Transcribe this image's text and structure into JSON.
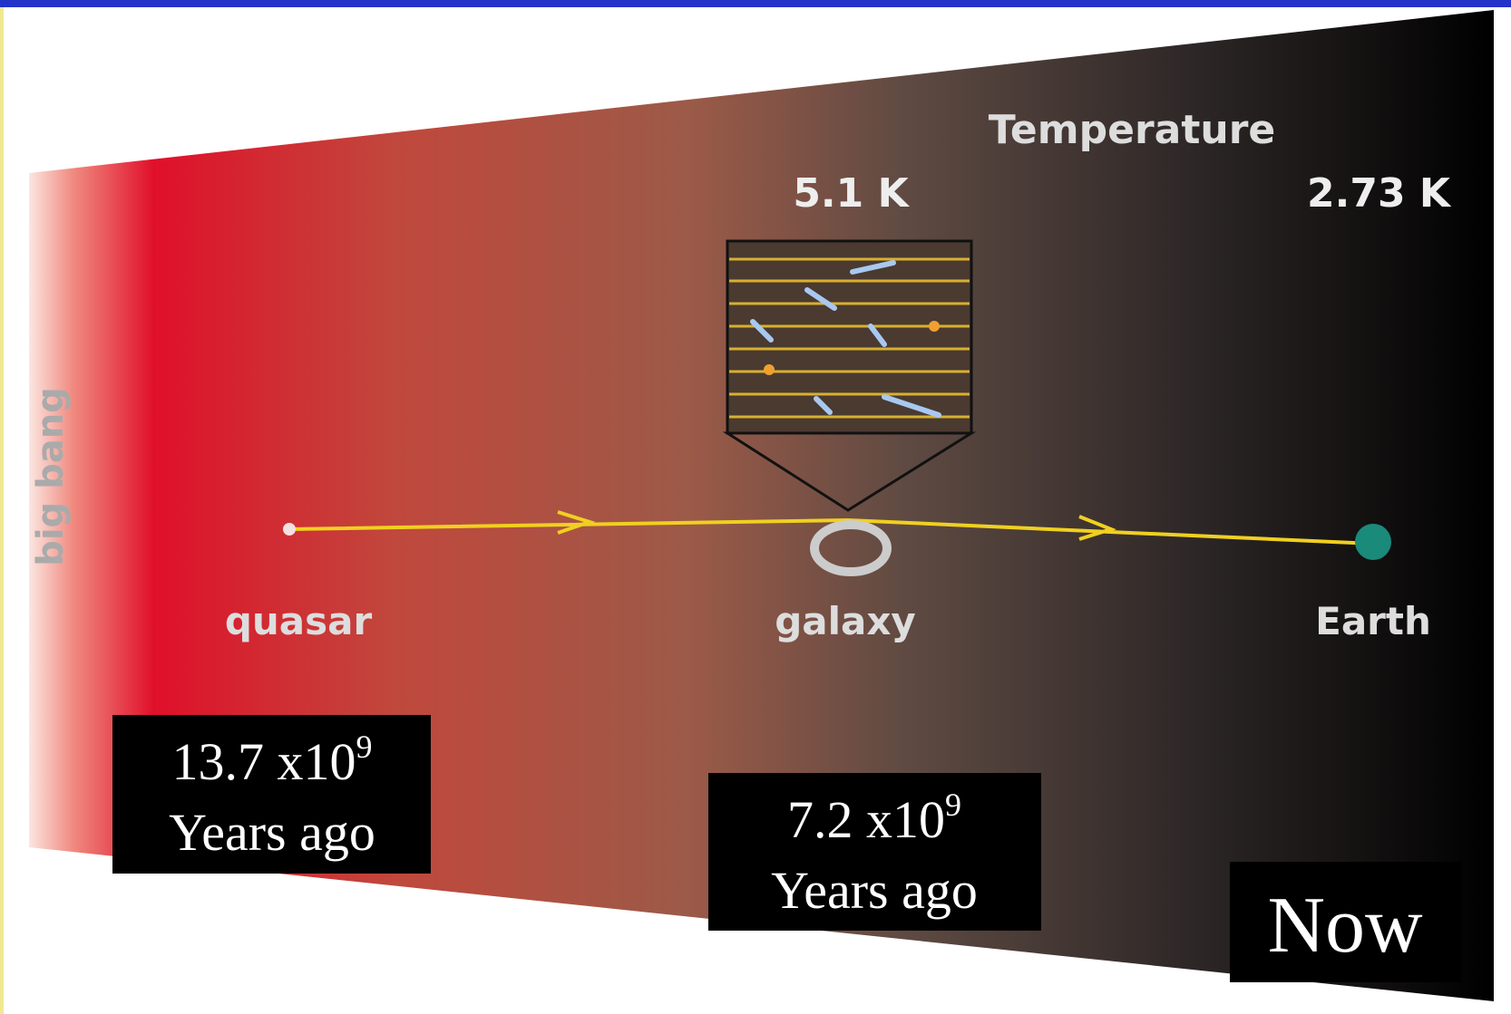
{
  "temperature": {
    "title": "Temperature",
    "values": [
      "5.1 K",
      "2.73 K"
    ]
  },
  "timeline": {
    "start": "big bang",
    "objects": [
      "quasar",
      "galaxy",
      "Earth"
    ]
  },
  "time_labels": [
    {
      "base": "13.7 x10",
      "exponent": "9",
      "unit": "Years ago"
    },
    {
      "base": "7.2 x10",
      "exponent": "9",
      "unit": "Years ago"
    },
    {
      "text": "Now"
    }
  ]
}
